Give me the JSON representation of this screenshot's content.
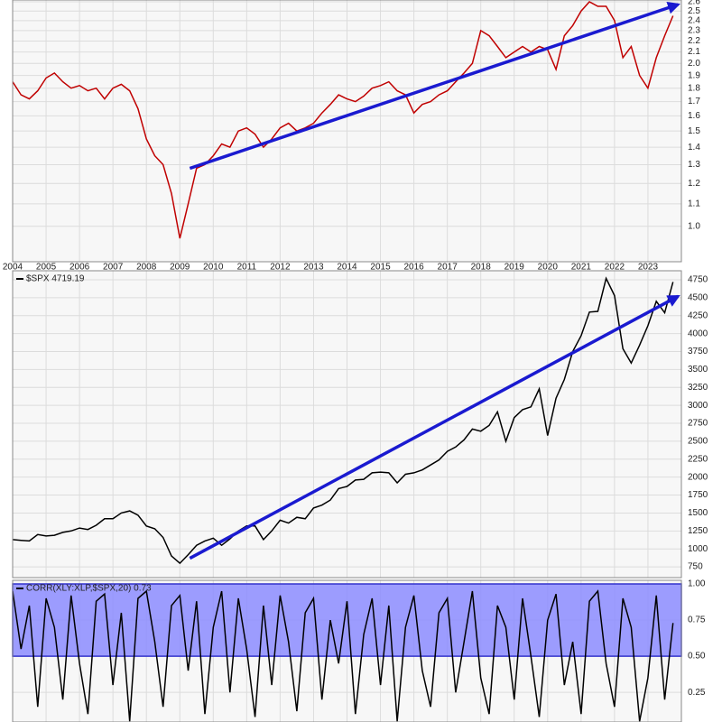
{
  "chart_data": [
    {
      "type": "line",
      "log_scale": true,
      "grid": true,
      "x": [
        2004,
        2004.25,
        2004.5,
        2004.75,
        2005,
        2005.25,
        2005.5,
        2005.75,
        2006,
        2006.25,
        2006.5,
        2006.75,
        2007,
        2007.25,
        2007.5,
        2007.75,
        2008,
        2008.25,
        2008.5,
        2008.75,
        2009,
        2009.25,
        2009.5,
        2009.75,
        2010,
        2010.25,
        2010.5,
        2010.75,
        2011,
        2011.25,
        2011.5,
        2011.75,
        2012,
        2012.25,
        2012.5,
        2012.75,
        2013,
        2013.25,
        2013.5,
        2013.75,
        2014,
        2014.25,
        2014.5,
        2014.75,
        2015,
        2015.25,
        2015.5,
        2015.75,
        2016,
        2016.25,
        2016.5,
        2016.75,
        2017,
        2017.25,
        2017.5,
        2017.75,
        2018,
        2018.25,
        2018.5,
        2018.75,
        2019,
        2019.25,
        2019.5,
        2019.75,
        2020,
        2020.25,
        2020.5,
        2020.75,
        2021,
        2021.25,
        2021.5,
        2021.75,
        2022,
        2022.25,
        2022.5,
        2022.75,
        2023,
        2023.25,
        2023.5,
        2023.75
      ],
      "series": [
        {
          "color": "#c00000",
          "values": [
            1.85,
            1.75,
            1.72,
            1.78,
            1.88,
            1.92,
            1.85,
            1.8,
            1.82,
            1.78,
            1.8,
            1.72,
            1.8,
            1.83,
            1.78,
            1.65,
            1.45,
            1.35,
            1.3,
            1.15,
            0.95,
            1.1,
            1.28,
            1.3,
            1.35,
            1.42,
            1.4,
            1.5,
            1.52,
            1.48,
            1.4,
            1.45,
            1.52,
            1.55,
            1.5,
            1.52,
            1.55,
            1.62,
            1.68,
            1.75,
            1.72,
            1.7,
            1.74,
            1.8,
            1.82,
            1.85,
            1.78,
            1.75,
            1.62,
            1.68,
            1.7,
            1.75,
            1.78,
            1.85,
            1.92,
            2.0,
            2.3,
            2.25,
            2.15,
            2.05,
            2.1,
            2.15,
            2.1,
            2.15,
            2.12,
            1.95,
            2.25,
            2.35,
            2.5,
            2.6,
            2.55,
            2.55,
            2.4,
            2.05,
            2.15,
            1.9,
            1.8,
            2.05,
            2.25,
            2.45
          ]
        }
      ],
      "trendline": {
        "x": [
          2009.3,
          2023.9
        ],
        "y": [
          1.28,
          2.57
        ],
        "color": "#1a1ad0"
      },
      "xlim": [
        2004,
        2024
      ],
      "xticks": [
        2004,
        2005,
        2006,
        2007,
        2008,
        2009,
        2010,
        2011,
        2012,
        2013,
        2014,
        2015,
        2016,
        2017,
        2018,
        2019,
        2020,
        2021,
        2022,
        2023
      ],
      "ylim": [
        0.86,
        2.62
      ],
      "yticks": [
        {
          "value": 1,
          "label": "1.0"
        },
        1.1,
        1.2,
        1.3,
        1.4,
        1.5,
        1.6,
        1.7,
        1.8,
        1.9,
        {
          "value": 2,
          "label": "2.0"
        },
        2.1,
        2.2,
        2.3,
        2.4,
        2.5,
        2.6
      ]
    },
    {
      "type": "line",
      "grid": true,
      "x": [
        2004,
        2004.25,
        2004.5,
        2004.75,
        2005,
        2005.25,
        2005.5,
        2005.75,
        2006,
        2006.25,
        2006.5,
        2006.75,
        2007,
        2007.25,
        2007.5,
        2007.75,
        2008,
        2008.25,
        2008.5,
        2008.75,
        2009,
        2009.25,
        2009.5,
        2009.75,
        2010,
        2010.25,
        2010.5,
        2010.75,
        2011,
        2011.25,
        2011.5,
        2011.75,
        2012,
        2012.25,
        2012.5,
        2012.75,
        2013,
        2013.25,
        2013.5,
        2013.75,
        2014,
        2014.25,
        2014.5,
        2014.75,
        2015,
        2015.25,
        2015.5,
        2015.75,
        2016,
        2016.25,
        2016.5,
        2016.75,
        2017,
        2017.25,
        2017.5,
        2017.75,
        2018,
        2018.25,
        2018.5,
        2018.75,
        2019,
        2019.25,
        2019.5,
        2019.75,
        2020,
        2020.25,
        2020.5,
        2020.75,
        2021,
        2021.25,
        2021.5,
        2021.75,
        2022,
        2022.25,
        2022.5,
        2022.75,
        2023,
        2023.25,
        2023.5,
        2023.75
      ],
      "series": [
        {
          "name": "$SPX 4719.19",
          "color": "#000000",
          "values": [
            1130,
            1120,
            1110,
            1200,
            1180,
            1190,
            1230,
            1250,
            1290,
            1270,
            1330,
            1420,
            1420,
            1500,
            1530,
            1470,
            1320,
            1280,
            1160,
            900,
            800,
            920,
            1050,
            1110,
            1150,
            1050,
            1140,
            1250,
            1320,
            1320,
            1130,
            1250,
            1400,
            1360,
            1440,
            1420,
            1570,
            1610,
            1680,
            1840,
            1870,
            1960,
            1970,
            2060,
            2070,
            2060,
            1920,
            2040,
            2060,
            2100,
            2170,
            2240,
            2360,
            2420,
            2520,
            2670,
            2640,
            2720,
            2910,
            2500,
            2830,
            2940,
            2980,
            3230,
            2580,
            3100,
            3360,
            3750,
            3970,
            4300,
            4310,
            4770,
            4530,
            3790,
            3590,
            3840,
            4110,
            4450,
            4290,
            4720
          ]
        }
      ],
      "trendline": {
        "x": [
          2009.3,
          2023.9
        ],
        "y": [
          870,
          4520
        ],
        "color": "#1a1ad0"
      },
      "xlim": [
        2004,
        2024
      ],
      "ylim": [
        600,
        4876
      ],
      "yticks": [
        750,
        1000,
        1250,
        1500,
        1750,
        2000,
        2250,
        2500,
        2750,
        3000,
        3250,
        3500,
        3750,
        4000,
        4250,
        4500,
        4750
      ]
    },
    {
      "type": "line",
      "grid": true,
      "x": [
        2004,
        2004.25,
        2004.5,
        2004.75,
        2005,
        2005.25,
        2005.5,
        2005.75,
        2006,
        2006.25,
        2006.5,
        2006.75,
        2007,
        2007.25,
        2007.5,
        2007.75,
        2008,
        2008.25,
        2008.5,
        2008.75,
        2009,
        2009.25,
        2009.5,
        2009.75,
        2010,
        2010.25,
        2010.5,
        2010.75,
        2011,
        2011.25,
        2011.5,
        2011.75,
        2012,
        2012.25,
        2012.5,
        2012.75,
        2013,
        2013.25,
        2013.5,
        2013.75,
        2014,
        2014.25,
        2014.5,
        2014.75,
        2015,
        2015.25,
        2015.5,
        2015.75,
        2016,
        2016.25,
        2016.5,
        2016.75,
        2017,
        2017.25,
        2017.5,
        2017.75,
        2018,
        2018.25,
        2018.5,
        2018.75,
        2019,
        2019.25,
        2019.5,
        2019.75,
        2020,
        2020.25,
        2020.5,
        2020.75,
        2021,
        2021.25,
        2021.5,
        2021.75,
        2022,
        2022.25,
        2022.5,
        2022.75,
        2023,
        2023.25,
        2023.5,
        2023.75
      ],
      "series": [
        {
          "name": "CORR(XLY:XLP,$SPX,20) 0.73",
          "color": "#000000",
          "values": [
            0.95,
            0.55,
            0.85,
            0.15,
            0.9,
            0.7,
            0.2,
            0.92,
            0.45,
            0.1,
            0.88,
            0.93,
            0.3,
            0.8,
            0.05,
            0.9,
            0.95,
            0.6,
            0.15,
            0.85,
            0.92,
            0.4,
            0.88,
            0.1,
            0.7,
            0.95,
            0.25,
            0.9,
            0.55,
            0.08,
            0.85,
            0.3,
            0.92,
            0.6,
            0.12,
            0.8,
            0.9,
            0.2,
            0.75,
            0.45,
            0.88,
            0.1,
            0.65,
            0.9,
            0.3,
            0.85,
            0.05,
            0.7,
            0.92,
            0.4,
            0.15,
            0.8,
            0.9,
            0.25,
            0.6,
            0.95,
            0.35,
            0.1,
            0.85,
            0.7,
            0.2,
            0.9,
            0.5,
            0.08,
            0.75,
            0.93,
            0.3,
            0.6,
            0.1,
            0.88,
            0.95,
            0.45,
            0.15,
            0.9,
            0.7,
            0.05,
            0.35,
            0.92,
            0.2,
            0.73
          ]
        }
      ],
      "band": [
        0.5,
        1.0
      ],
      "band_color": "#8c8cff",
      "xlim": [
        2004,
        2024
      ],
      "ylim": [
        0.045,
        1.025
      ],
      "yticks": [
        {
          "value": 1,
          "label": "1.00"
        },
        {
          "value": 0.75,
          "label": "0.75"
        },
        {
          "value": 0.5,
          "label": "0.50"
        },
        {
          "value": 0.25,
          "label": "0.25"
        }
      ]
    }
  ]
}
